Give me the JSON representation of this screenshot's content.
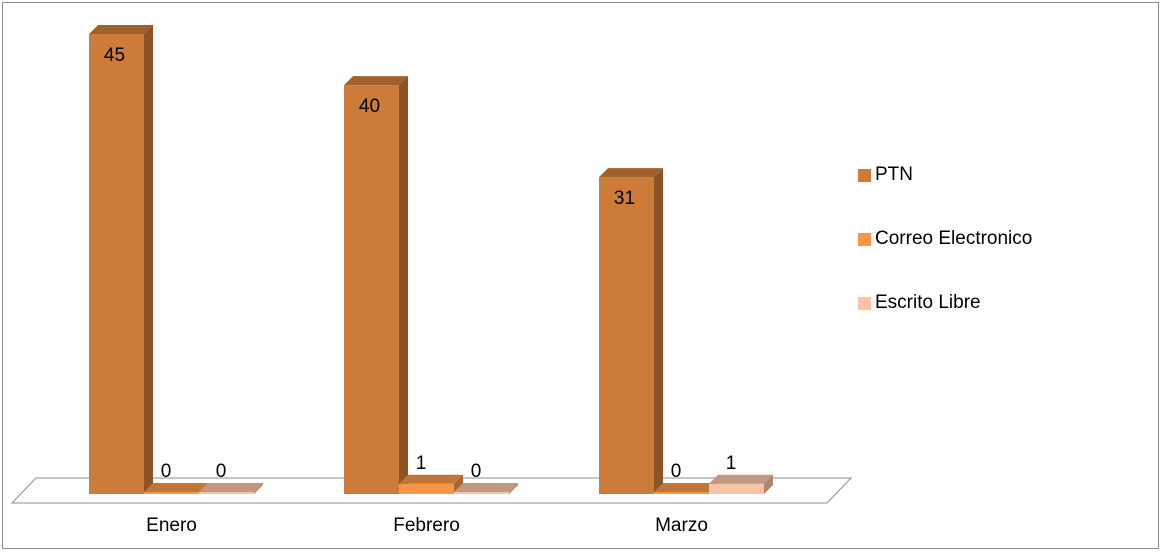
{
  "chart_data": {
    "type": "bar",
    "categories": [
      "Enero",
      "Febrero",
      "Marzo"
    ],
    "series": [
      {
        "name": "PTN",
        "values": [
          45,
          40,
          31
        ],
        "color": "#cc7b38"
      },
      {
        "name": "Correo Electronico",
        "values": [
          0,
          1,
          0
        ],
        "color": "#f79646"
      },
      {
        "name": "Escrito Libre",
        "values": [
          0,
          0,
          1
        ],
        "color": "#f9c3a8"
      }
    ],
    "title": "",
    "xlabel": "",
    "ylabel": "",
    "ylim": [
      0,
      45
    ],
    "three_d": true,
    "data_labels": true,
    "grid": false,
    "legend_position": "right"
  }
}
